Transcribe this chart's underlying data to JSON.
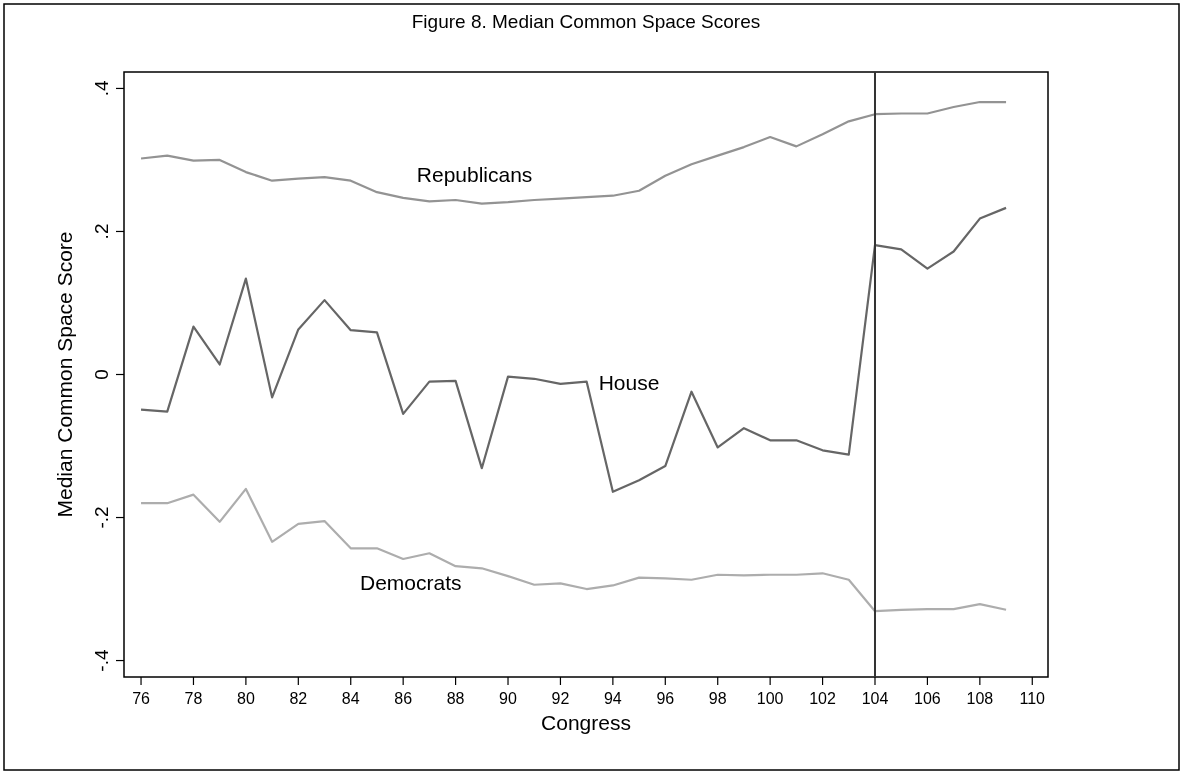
{
  "chart_data": {
    "type": "line",
    "title": "Figure 8. Median Common Space Scores",
    "xlabel": "Congress",
    "ylabel": "Median Common Space Score",
    "x": [
      76,
      77,
      78,
      79,
      80,
      81,
      82,
      83,
      84,
      85,
      86,
      87,
      88,
      89,
      90,
      91,
      92,
      93,
      94,
      95,
      96,
      97,
      98,
      99,
      100,
      101,
      102,
      103,
      104,
      105,
      106,
      107,
      108,
      109
    ],
    "series": [
      {
        "name": "Republicans",
        "color": "#939393",
        "values": [
          0.302,
          0.306,
          0.299,
          0.3,
          0.283,
          0.271,
          0.274,
          0.276,
          0.271,
          0.255,
          0.247,
          0.242,
          0.244,
          0.239,
          0.241,
          0.244,
          0.246,
          0.248,
          0.25,
          0.257,
          0.278,
          0.294,
          0.306,
          0.318,
          0.332,
          0.319,
          0.336,
          0.354,
          0.364,
          0.365,
          0.365,
          0.374,
          0.381,
          0.381
        ]
      },
      {
        "name": "House",
        "color": "#666666",
        "values": [
          -0.049,
          -0.052,
          0.067,
          0.014,
          0.134,
          -0.032,
          0.063,
          0.104,
          0.062,
          0.059,
          -0.055,
          -0.01,
          -0.009,
          -0.131,
          -0.003,
          -0.006,
          -0.013,
          -0.01,
          -0.164,
          -0.148,
          -0.128,
          -0.024,
          -0.102,
          -0.075,
          -0.092,
          -0.092,
          -0.106,
          -0.112,
          0.181,
          0.175,
          0.148,
          0.172,
          0.218,
          0.233
        ]
      },
      {
        "name": "Democrats",
        "color": "#adadad",
        "values": [
          -0.18,
          -0.18,
          -0.168,
          -0.206,
          -0.16,
          -0.234,
          -0.209,
          -0.205,
          -0.243,
          -0.243,
          -0.258,
          -0.25,
          -0.268,
          -0.271,
          -0.282,
          -0.294,
          -0.292,
          -0.3,
          -0.295,
          -0.284,
          -0.285,
          -0.287,
          -0.28,
          -0.281,
          -0.28,
          -0.28,
          -0.278,
          -0.287,
          -0.331,
          -0.329,
          -0.328,
          -0.328,
          -0.321,
          -0.329
        ]
      }
    ],
    "xlim": [
      75.35,
      110.6
    ],
    "xticks": [
      76,
      78,
      80,
      82,
      84,
      86,
      88,
      90,
      92,
      94,
      96,
      98,
      100,
      102,
      104,
      106,
      108,
      110
    ],
    "ylim": [
      -0.423,
      0.423
    ],
    "yticks": [
      {
        "value": 0.4,
        "label": ".4"
      },
      {
        "value": 0.2,
        "label": ".2"
      },
      0,
      {
        "value": -0.2,
        "label": "-.2"
      },
      {
        "value": -0.4,
        "label": "-.4"
      }
    ],
    "ref_lines": [
      {
        "axis": "x",
        "value": 104,
        "color": "#333333"
      }
    ],
    "grid": false,
    "marker": "none",
    "line_style": "solid"
  }
}
